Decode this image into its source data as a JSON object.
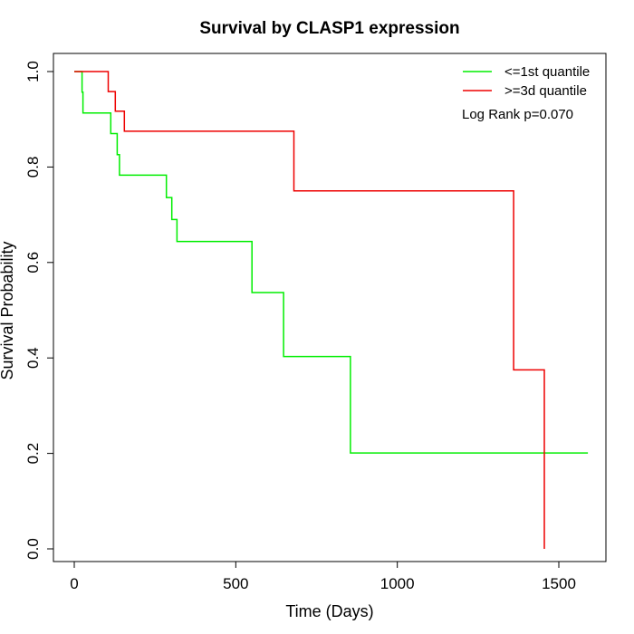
{
  "chart_data": {
    "type": "line",
    "title": "Survival by CLASP1 expression",
    "xlabel": "Time (Days)",
    "ylabel": "Survival Probability",
    "xlim": [
      0,
      1590
    ],
    "ylim": [
      0,
      1
    ],
    "xticks": [
      0,
      500,
      1000,
      1500
    ],
    "yticks": [
      0.0,
      0.2,
      0.4,
      0.6,
      0.8,
      1.0
    ],
    "xtick_labels": [
      "0",
      "500",
      "1000",
      "1500"
    ],
    "ytick_labels": [
      "0.0",
      "0.2",
      "0.4",
      "0.6",
      "0.8",
      "1.0"
    ],
    "grid": false,
    "legend_position": "top-right",
    "annotation": "Log Rank p=0.070",
    "series": [
      {
        "name": "<=1st quantile",
        "color": "#00ee00",
        "step": [
          [
            0,
            1.0
          ],
          [
            24,
            1.0
          ],
          [
            24,
            0.957
          ],
          [
            27,
            0.957
          ],
          [
            27,
            0.913
          ],
          [
            113,
            0.913
          ],
          [
            113,
            0.87
          ],
          [
            133,
            0.87
          ],
          [
            133,
            0.826
          ],
          [
            140,
            0.826
          ],
          [
            140,
            0.783
          ],
          [
            285,
            0.783
          ],
          [
            285,
            0.736
          ],
          [
            302,
            0.736
          ],
          [
            302,
            0.69
          ],
          [
            318,
            0.69
          ],
          [
            318,
            0.644
          ],
          [
            550,
            0.644
          ],
          [
            550,
            0.537
          ],
          [
            648,
            0.537
          ],
          [
            648,
            0.403
          ],
          [
            855,
            0.403
          ],
          [
            855,
            0.201
          ],
          [
            1590,
            0.201
          ]
        ]
      },
      {
        "name": ">=3d quantile",
        "color": "#ee0000",
        "step": [
          [
            0,
            1.0
          ],
          [
            105,
            1.0
          ],
          [
            105,
            0.958
          ],
          [
            127,
            0.958
          ],
          [
            127,
            0.917
          ],
          [
            155,
            0.917
          ],
          [
            155,
            0.875
          ],
          [
            680,
            0.875
          ],
          [
            680,
            0.75
          ],
          [
            1360,
            0.75
          ],
          [
            1360,
            0.375
          ],
          [
            1455,
            0.375
          ],
          [
            1455,
            0.0
          ]
        ]
      }
    ]
  }
}
